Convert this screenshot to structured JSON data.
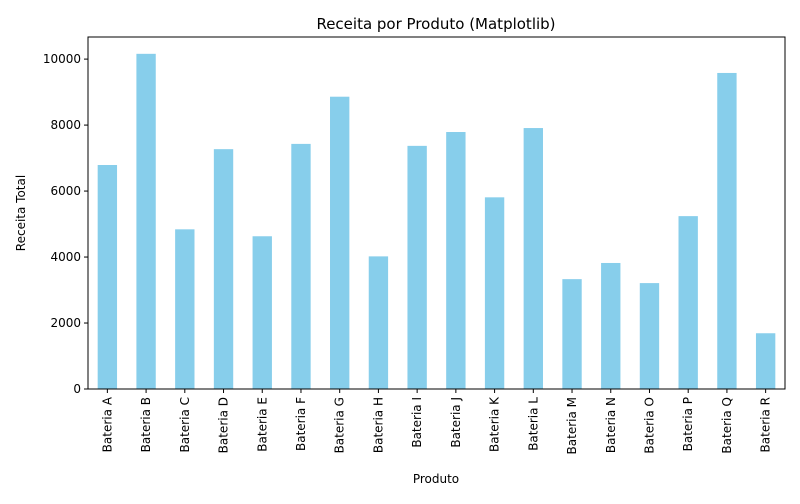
{
  "chart_data": {
    "type": "bar",
    "title": "Receita por Produto (Matplotlib)",
    "xlabel": "Produto",
    "ylabel": "Receita Total",
    "categories": [
      "Bateria A",
      "Bateria B",
      "Bateria C",
      "Bateria D",
      "Bateria E",
      "Bateria F",
      "Bateria G",
      "Bateria H",
      "Bateria I",
      "Bateria J",
      "Bateria K",
      "Bateria L",
      "Bateria M",
      "Bateria N",
      "Bateria O",
      "Bateria P",
      "Bateria Q",
      "Bateria R"
    ],
    "values": [
      6790,
      10160,
      4840,
      7270,
      4630,
      7430,
      8860,
      4020,
      7370,
      7790,
      5810,
      7910,
      3330,
      3820,
      3210,
      5240,
      9580,
      1690
    ],
    "ylim": [
      0,
      10670
    ],
    "yticks": [
      0,
      2000,
      4000,
      6000,
      8000,
      10000
    ],
    "bar_color": "#87ceeb",
    "grid": false,
    "legend": "none"
  }
}
